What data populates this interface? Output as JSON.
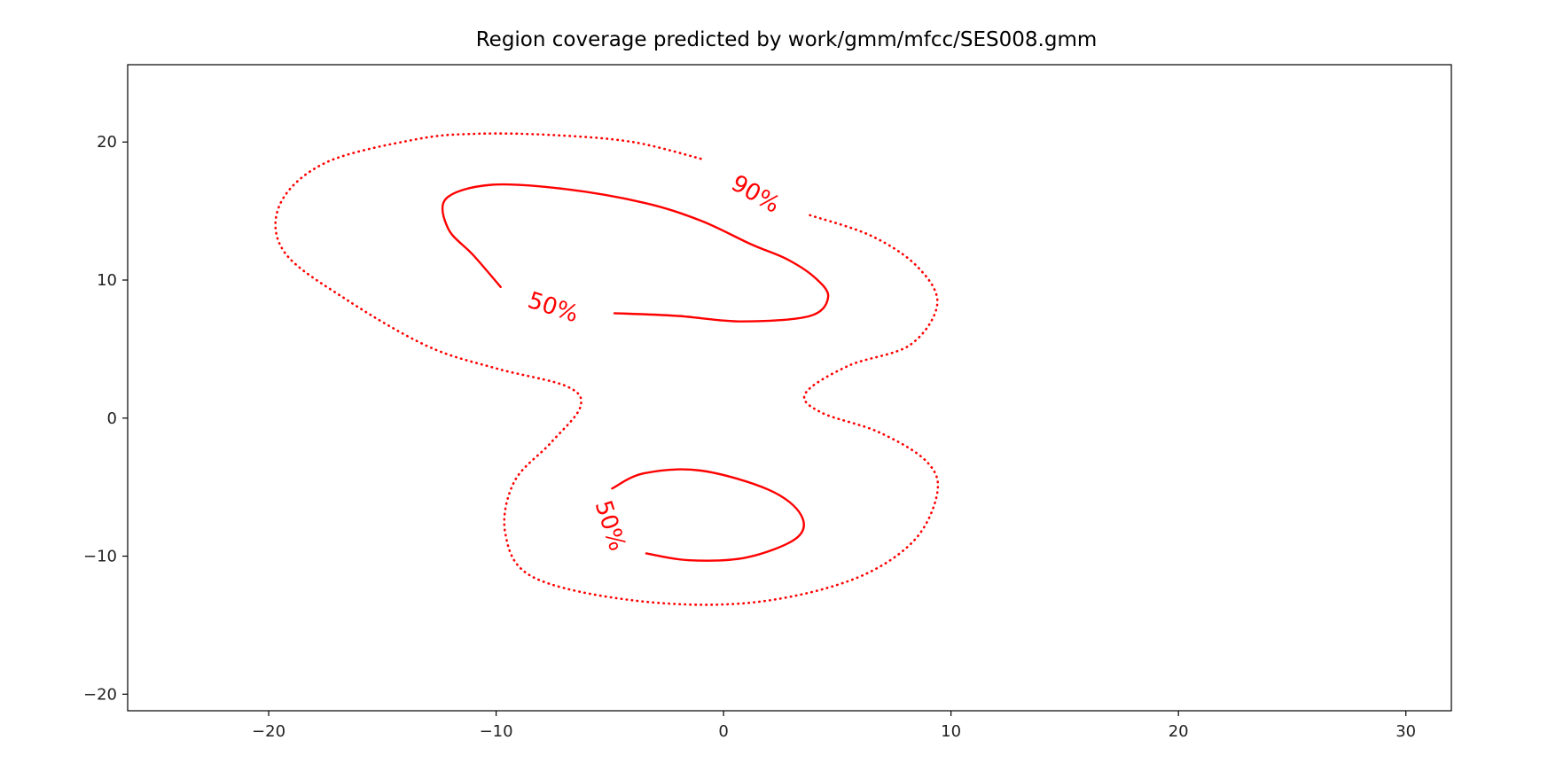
{
  "chart_data": {
    "type": "contour",
    "title": "Region coverage predicted by work/gmm/mfcc/SES008.gmm",
    "xlabel": "",
    "ylabel": "",
    "xlim": [
      -26.2,
      32
    ],
    "ylim": [
      -21.2,
      25.6
    ],
    "xticks": [
      -20,
      -10,
      0,
      10,
      20,
      30
    ],
    "yticks": [
      -20,
      -10,
      0,
      10,
      20
    ],
    "xtick_labels": [
      "−20",
      "−10",
      "0",
      "10",
      "20",
      "30"
    ],
    "ytick_labels": [
      "−20",
      "−10",
      "0",
      "10",
      "20"
    ],
    "grid": false,
    "color": "#ff0000",
    "contours": [
      {
        "level": "90%",
        "style": "dotted",
        "closed": false,
        "points": [
          [
            3.8,
            14.7
          ],
          [
            6.5,
            13.2
          ],
          [
            8.5,
            11.0
          ],
          [
            9.4,
            8.3
          ],
          [
            8.2,
            5.3
          ],
          [
            5.5,
            3.8
          ],
          [
            3.6,
            1.8
          ],
          [
            4.3,
            0.4
          ],
          [
            6.8,
            -1.0
          ],
          [
            8.9,
            -3.1
          ],
          [
            9.4,
            -5.4
          ],
          [
            8.3,
            -9.0
          ],
          [
            5.5,
            -11.8
          ],
          [
            1.0,
            -13.4
          ],
          [
            -4.0,
            -13.2
          ],
          [
            -8.4,
            -11.5
          ],
          [
            -9.6,
            -8.3
          ],
          [
            -9.2,
            -4.6
          ],
          [
            -7.6,
            -1.8
          ],
          [
            -6.3,
            0.8
          ],
          [
            -6.9,
            2.3
          ],
          [
            -10.0,
            3.6
          ],
          [
            -13.0,
            5.2
          ],
          [
            -16.5,
            8.5
          ],
          [
            -19.3,
            12.0
          ],
          [
            -19.5,
            15.5
          ],
          [
            -17.5,
            18.5
          ],
          [
            -13.5,
            20.2
          ],
          [
            -10.8,
            20.6
          ],
          [
            -7.5,
            20.5
          ],
          [
            -4.0,
            20.0
          ],
          [
            -0.8,
            18.7
          ]
        ]
      },
      {
        "level": "50%",
        "style": "solid",
        "closed": false,
        "points": [
          [
            -4.8,
            7.6
          ],
          [
            -2.0,
            7.4
          ],
          [
            0.8,
            7.0
          ],
          [
            3.8,
            7.4
          ],
          [
            4.6,
            8.8
          ],
          [
            4.0,
            10.2
          ],
          [
            2.8,
            11.5
          ],
          [
            1.2,
            12.6
          ],
          [
            -1.0,
            14.3
          ],
          [
            -3.5,
            15.6
          ],
          [
            -7.0,
            16.6
          ],
          [
            -10.2,
            16.9
          ],
          [
            -12.2,
            15.9
          ],
          [
            -12.1,
            13.7
          ],
          [
            -11.0,
            11.8
          ],
          [
            -9.8,
            9.5
          ]
        ]
      },
      {
        "level": "50%",
        "style": "solid",
        "closed": false,
        "points": [
          [
            -3.4,
            -9.8
          ],
          [
            -1.5,
            -10.3
          ],
          [
            1.0,
            -10.1
          ],
          [
            3.2,
            -8.7
          ],
          [
            3.4,
            -7.0
          ],
          [
            2.0,
            -5.2
          ],
          [
            -1.0,
            -3.8
          ],
          [
            -3.5,
            -4.0
          ],
          [
            -4.9,
            -5.1
          ]
        ]
      }
    ],
    "contour_labels": [
      {
        "text": "90%",
        "x": 1.4,
        "y": 16.2,
        "angle": 30
      },
      {
        "text": "50%",
        "x": -7.5,
        "y": 8.0,
        "angle": 18
      },
      {
        "text": "50%",
        "x": -5.0,
        "y": -7.8,
        "angle": 72
      }
    ]
  }
}
